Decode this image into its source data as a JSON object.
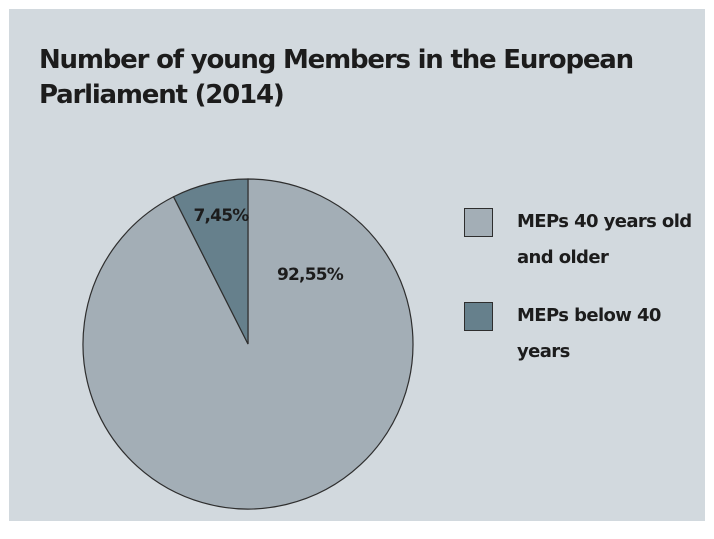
{
  "chart_data": {
    "type": "pie",
    "title": "Number of young Members in the European Parliament (2014)",
    "slices": [
      {
        "label": "MEPs 40 years old and older",
        "value": 92.55,
        "value_label": "92,55%",
        "color": "#a3aeb6"
      },
      {
        "label": "MEPs below 40 years",
        "value": 7.45,
        "value_label": "7,45%",
        "color": "#66808c"
      }
    ],
    "legend_position": "right",
    "start": "top, clockwise"
  }
}
